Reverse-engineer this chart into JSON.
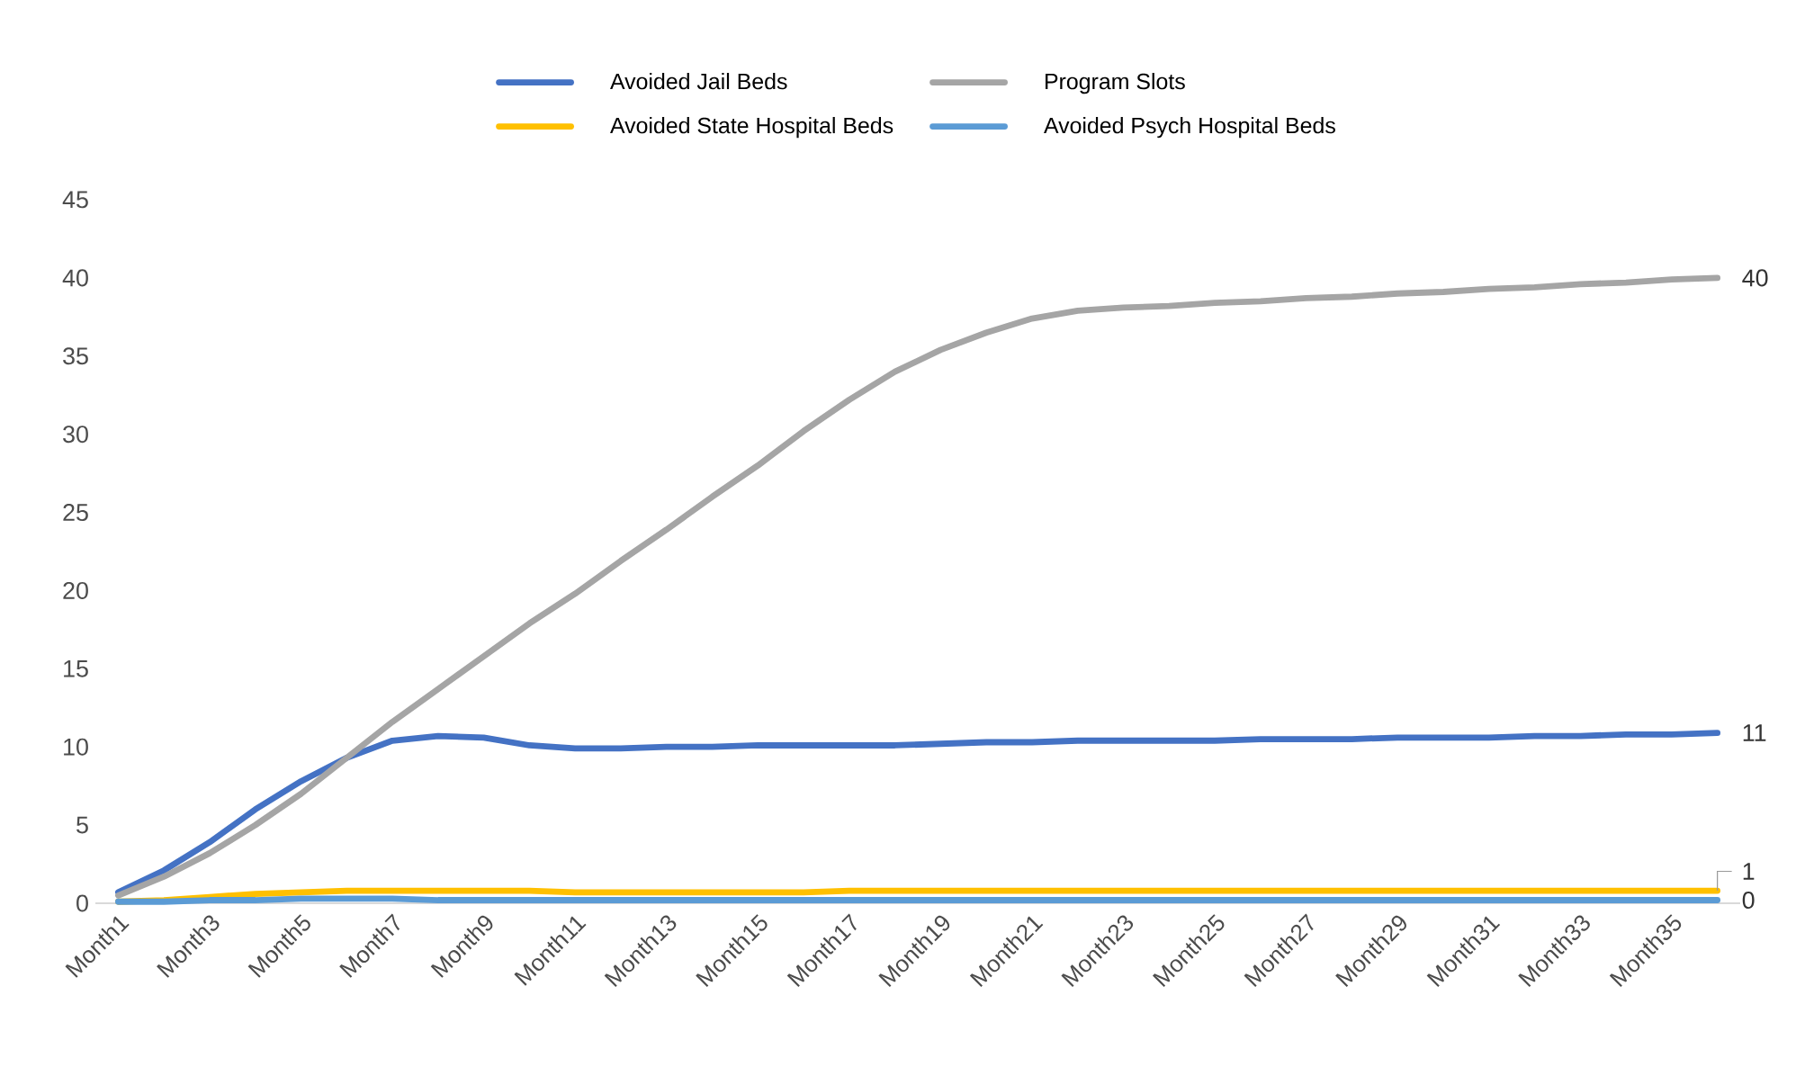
{
  "chart_data": {
    "type": "line",
    "categories": [
      "Month1",
      null,
      "Month3",
      null,
      "Month5",
      null,
      "Month7",
      null,
      "Month9",
      null,
      "Month11",
      null,
      "Month13",
      null,
      "Month15",
      null,
      "Month17",
      null,
      "Month19",
      null,
      "Month21",
      null,
      "Month23",
      null,
      "Month25",
      null,
      "Month27",
      null,
      "Month29",
      null,
      "Month31",
      null,
      "Month33",
      null,
      "Month35",
      null
    ],
    "series": [
      {
        "name": "Avoided Jail Beds",
        "color": "#4472c4",
        "values": [
          0.7,
          2.1,
          3.9,
          6.0,
          7.8,
          9.3,
          10.4,
          10.7,
          10.6,
          10.1,
          9.9,
          9.9,
          10.0,
          10.0,
          10.1,
          10.1,
          10.1,
          10.1,
          10.2,
          10.3,
          10.3,
          10.4,
          10.4,
          10.4,
          10.4,
          10.5,
          10.5,
          10.5,
          10.6,
          10.6,
          10.6,
          10.7,
          10.7,
          10.8,
          10.8,
          10.9
        ],
        "value_labels": [
          null,
          null,
          null,
          null,
          null,
          null,
          null,
          null,
          null,
          null,
          null,
          null,
          null,
          null,
          null,
          null,
          null,
          null,
          null,
          null,
          null,
          null,
          null,
          null,
          null,
          null,
          null,
          null,
          null,
          null,
          null,
          null,
          null,
          null,
          null,
          "11"
        ]
      },
      {
        "name": "Program Slots",
        "color": "#a5a5a5",
        "values": [
          0.5,
          1.7,
          3.2,
          5.0,
          7.0,
          9.3,
          11.6,
          13.7,
          15.8,
          17.9,
          19.8,
          21.9,
          23.9,
          26.0,
          28.0,
          30.2,
          32.2,
          34.0,
          35.4,
          36.5,
          37.4,
          37.9,
          38.1,
          38.2,
          38.4,
          38.5,
          38.7,
          38.8,
          39.0,
          39.1,
          39.3,
          39.4,
          39.6,
          39.7,
          39.9,
          40.0
        ],
        "value_labels": [
          null,
          null,
          null,
          null,
          null,
          null,
          null,
          null,
          null,
          null,
          null,
          null,
          null,
          null,
          null,
          null,
          null,
          null,
          null,
          null,
          null,
          null,
          null,
          null,
          null,
          null,
          null,
          null,
          null,
          null,
          null,
          null,
          null,
          null,
          null,
          "40"
        ]
      },
      {
        "name": "Avoided State Hospital Beds",
        "color": "#ffc000",
        "values": [
          0.1,
          0.2,
          0.4,
          0.6,
          0.7,
          0.8,
          0.8,
          0.8,
          0.8,
          0.8,
          0.7,
          0.7,
          0.7,
          0.7,
          0.7,
          0.7,
          0.8,
          0.8,
          0.8,
          0.8,
          0.8,
          0.8,
          0.8,
          0.8,
          0.8,
          0.8,
          0.8,
          0.8,
          0.8,
          0.8,
          0.8,
          0.8,
          0.8,
          0.8,
          0.8,
          0.8
        ],
        "value_labels": [
          null,
          null,
          null,
          null,
          null,
          null,
          null,
          null,
          null,
          null,
          null,
          null,
          null,
          null,
          null,
          null,
          null,
          null,
          null,
          null,
          null,
          null,
          null,
          null,
          null,
          null,
          null,
          null,
          null,
          null,
          null,
          null,
          null,
          null,
          null,
          "1"
        ]
      },
      {
        "name": "Avoided Psych Hospital Beds",
        "color": "#5b9bd5",
        "values": [
          0.1,
          0.1,
          0.2,
          0.2,
          0.3,
          0.3,
          0.3,
          0.2,
          0.2,
          0.2,
          0.2,
          0.2,
          0.2,
          0.2,
          0.2,
          0.2,
          0.2,
          0.2,
          0.2,
          0.2,
          0.2,
          0.2,
          0.2,
          0.2,
          0.2,
          0.2,
          0.2,
          0.2,
          0.2,
          0.2,
          0.2,
          0.2,
          0.2,
          0.2,
          0.2,
          0.2
        ],
        "value_labels": [
          null,
          null,
          null,
          null,
          null,
          null,
          null,
          null,
          null,
          null,
          null,
          null,
          null,
          null,
          null,
          null,
          null,
          null,
          null,
          null,
          null,
          null,
          null,
          null,
          null,
          null,
          null,
          null,
          null,
          null,
          null,
          null,
          null,
          null,
          null,
          "0"
        ]
      }
    ],
    "ylim": [
      0,
      45
    ],
    "yticks": [
      0,
      5,
      10,
      15,
      20,
      25,
      30,
      35,
      40,
      45
    ],
    "grid": false,
    "legend": "top",
    "marker": "none",
    "line_style": "solid"
  }
}
